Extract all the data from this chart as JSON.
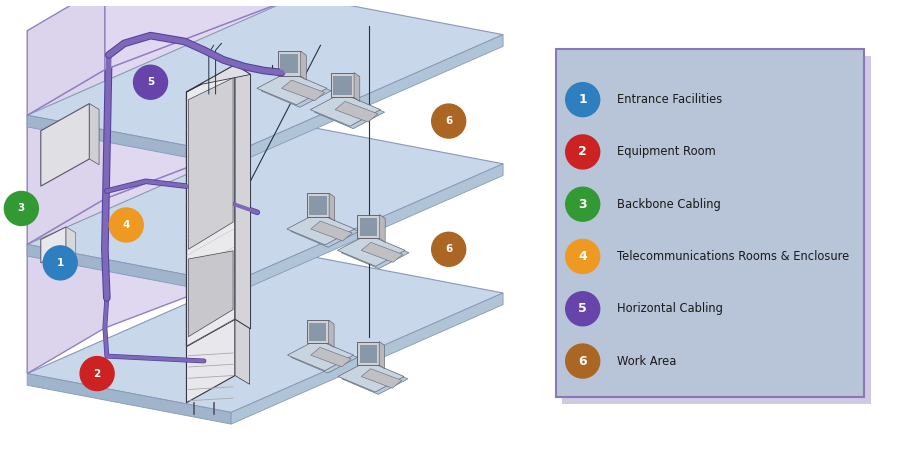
{
  "legend_bg_color": "#b8c4d8",
  "legend_border_color": "#8878b8",
  "legend_shadow_color": "#9088b8",
  "items": [
    {
      "num": "1",
      "label": "Entrance Facilities",
      "color": "#2e7fc0"
    },
    {
      "num": "2",
      "label": "Equipment Room",
      "color": "#cc2222"
    },
    {
      "num": "3",
      "label": "Backbone Cabling",
      "color": "#339933"
    },
    {
      "num": "4",
      "label": "Telecommunications Rooms & Enclosure",
      "color": "#ee9922"
    },
    {
      "num": "5",
      "label": "Horizontal Cabling",
      "color": "#6644aa"
    },
    {
      "num": "6",
      "label": "Work Area",
      "color": "#aa6622"
    }
  ],
  "floor_top_color": "#c8d8ea",
  "floor_edge_left_color": "#a0b4cc",
  "floor_edge_right_color": "#b0c4d8",
  "floor_stroke": "#8898b8",
  "wall_left_color": "#dcd4ec",
  "wall_back_color": "#e0d8f0",
  "wall_stroke": "#9080c0",
  "cable_color": "#8068b8",
  "cable_dark": "#5040a0",
  "rack_face": "#e8e8ea",
  "rack_side": "#d0d0d4",
  "rack_stroke": "#444455",
  "ws_desk": "#d0dcea",
  "ws_mon": "#c8c8cc",
  "ws_screen": "#8898aa",
  "white": "#ffffff",
  "badge_r": 0.175
}
